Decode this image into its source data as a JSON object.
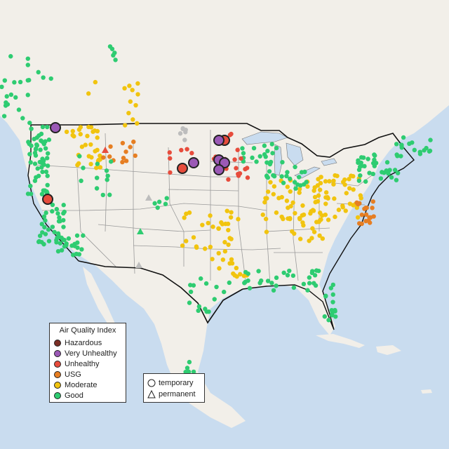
{
  "legend": {
    "title": "Air Quality Index",
    "items": [
      {
        "label": "Hazardous",
        "color": "#7b2e25"
      },
      {
        "label": "Very Unhealthy",
        "color": "#9b59b6"
      },
      {
        "label": "Unhealthy",
        "color": "#e74c3c"
      },
      {
        "label": "USG",
        "color": "#e67e22"
      },
      {
        "label": "Moderate",
        "color": "#f1c40f"
      },
      {
        "label": "Good",
        "color": "#2ecc71"
      }
    ]
  },
  "monitor_legend": {
    "items": [
      {
        "label": "temporary",
        "shape": "circle"
      },
      {
        "label": "permanent",
        "shape": "triangle"
      }
    ]
  },
  "map_colors": {
    "ocean": "#c9dcef",
    "land": "#f2efe9",
    "lakes": "#c9dcef",
    "state_border": "#9a9a9a",
    "national_border": "#111111",
    "no_data": "#bdbdbd"
  }
}
